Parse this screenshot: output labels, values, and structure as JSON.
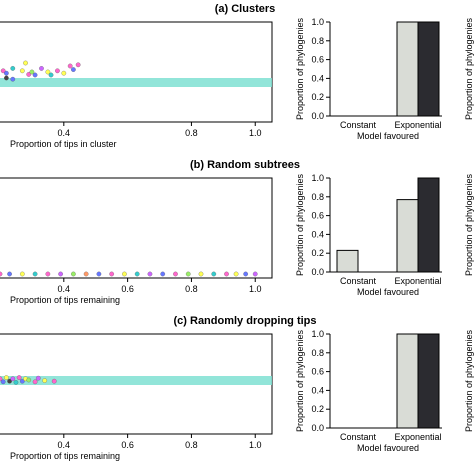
{
  "colors": {
    "band": "#7fe0d2",
    "constant_bar": "#d9dcd6",
    "exponential_bar_light": "#d9dcd6",
    "exponential_bar_dark": "#2b2b30",
    "point_palette": [
      "#ff66cc",
      "#ffff55",
      "#6677ff",
      "#33cccc",
      "#cc66ff",
      "#99ee66",
      "#ff9966",
      "#444444"
    ]
  },
  "chart_data": [
    {
      "type": "scatter",
      "panel": "a",
      "title": "(a) Clusters",
      "xlabel": "Proportion of tips in cluster",
      "xticks": [
        "0.4",
        "0.8",
        "1.0"
      ],
      "xtick_values": [
        0.4,
        0.8,
        1.0
      ],
      "band": true,
      "points": [
        {
          "x": 0.21,
          "y": 0.62,
          "color": "#ff66cc"
        },
        {
          "x": 0.22,
          "y": 0.58,
          "color": "#6677ff"
        },
        {
          "x": 0.24,
          "y": 0.66,
          "color": "#33cccc"
        },
        {
          "x": 0.27,
          "y": 0.62,
          "color": "#ffff55"
        },
        {
          "x": 0.28,
          "y": 0.75,
          "color": "#ffff55"
        },
        {
          "x": 0.29,
          "y": 0.56,
          "color": "#ff66cc"
        },
        {
          "x": 0.3,
          "y": 0.6,
          "color": "#99ee66"
        },
        {
          "x": 0.31,
          "y": 0.55,
          "color": "#6677ff"
        },
        {
          "x": 0.33,
          "y": 0.66,
          "color": "#cc66ff"
        },
        {
          "x": 0.35,
          "y": 0.6,
          "color": "#ffff55"
        },
        {
          "x": 0.36,
          "y": 0.55,
          "color": "#33cccc"
        },
        {
          "x": 0.38,
          "y": 0.62,
          "color": "#ff66cc"
        },
        {
          "x": 0.4,
          "y": 0.58,
          "color": "#ffff55"
        },
        {
          "x": 0.42,
          "y": 0.7,
          "color": "#ff66cc"
        },
        {
          "x": 0.43,
          "y": 0.64,
          "color": "#6677ff"
        },
        {
          "x": 0.445,
          "y": 0.72,
          "color": "#ff66cc"
        },
        {
          "x": 0.22,
          "y": 0.5,
          "color": "#444444"
        },
        {
          "x": 0.24,
          "y": 0.48,
          "color": "#6677ff"
        }
      ]
    },
    {
      "type": "bar",
      "panel": "a",
      "ylabel": "Proportion of phylogenies",
      "xlabel": "Model favoured",
      "categories": [
        "Constant",
        "Exponential"
      ],
      "yticks": [
        "0.0",
        "0.2",
        "0.4",
        "0.6",
        "0.8",
        "1.0"
      ],
      "ylim": [
        0,
        1
      ],
      "values": [
        [
          0.0,
          0.0
        ],
        [
          1.0,
          1.0
        ]
      ],
      "right_label": "Proportion of phylogenies"
    },
    {
      "type": "scatter",
      "panel": "b",
      "title": "(b) Random subtrees",
      "xlabel": "Proportion of tips remaining",
      "xticks": [
        "0.4",
        "0.6",
        "0.8",
        "1.0"
      ],
      "xtick_values": [
        0.4,
        0.6,
        0.8,
        1.0
      ],
      "band": false,
      "points": [
        {
          "x": 0.2,
          "y": 0.05,
          "color": "#ff66cc"
        },
        {
          "x": 0.23,
          "y": 0.05,
          "color": "#6677ff"
        },
        {
          "x": 0.27,
          "y": 0.05,
          "color": "#ffff55"
        },
        {
          "x": 0.31,
          "y": 0.05,
          "color": "#33cccc"
        },
        {
          "x": 0.35,
          "y": 0.05,
          "color": "#ff66cc"
        },
        {
          "x": 0.39,
          "y": 0.05,
          "color": "#cc66ff"
        },
        {
          "x": 0.43,
          "y": 0.05,
          "color": "#99ee66"
        },
        {
          "x": 0.47,
          "y": 0.05,
          "color": "#ff9966"
        },
        {
          "x": 0.51,
          "y": 0.05,
          "color": "#6677ff"
        },
        {
          "x": 0.55,
          "y": 0.05,
          "color": "#ff66cc"
        },
        {
          "x": 0.59,
          "y": 0.05,
          "color": "#ffff55"
        },
        {
          "x": 0.63,
          "y": 0.05,
          "color": "#33cccc"
        },
        {
          "x": 0.67,
          "y": 0.05,
          "color": "#cc66ff"
        },
        {
          "x": 0.71,
          "y": 0.05,
          "color": "#6677ff"
        },
        {
          "x": 0.75,
          "y": 0.05,
          "color": "#ff66cc"
        },
        {
          "x": 0.79,
          "y": 0.05,
          "color": "#99ee66"
        },
        {
          "x": 0.83,
          "y": 0.05,
          "color": "#ffff55"
        },
        {
          "x": 0.87,
          "y": 0.05,
          "color": "#33cccc"
        },
        {
          "x": 0.91,
          "y": 0.05,
          "color": "#ff66cc"
        },
        {
          "x": 0.94,
          "y": 0.05,
          "color": "#ffff55"
        },
        {
          "x": 0.97,
          "y": 0.05,
          "color": "#6677ff"
        },
        {
          "x": 1.0,
          "y": 0.05,
          "color": "#cc66ff"
        }
      ]
    },
    {
      "type": "bar",
      "panel": "b",
      "ylabel": "Proportion of phylogenies",
      "xlabel": "Model favoured",
      "categories": [
        "Constant",
        "Exponential"
      ],
      "yticks": [
        "0.0",
        "0.2",
        "0.4",
        "0.6",
        "0.8",
        "1.0"
      ],
      "ylim": [
        0,
        1
      ],
      "values": [
        [
          0.23,
          0.0
        ],
        [
          0.77,
          1.0
        ]
      ],
      "right_label": "Proportion of phylogenies"
    },
    {
      "type": "scatter",
      "panel": "c",
      "title": "(c) Randomly dropping tips",
      "xlabel": "Proportion of tips remaining",
      "xticks": [
        "0.4",
        "0.6",
        "0.8",
        "1.0"
      ],
      "xtick_values": [
        0.4,
        0.6,
        0.8,
        1.0
      ],
      "band": true,
      "points": [
        {
          "x": 0.2,
          "y": 0.6,
          "color": "#ff66cc"
        },
        {
          "x": 0.21,
          "y": 0.55,
          "color": "#6677ff"
        },
        {
          "x": 0.22,
          "y": 0.62,
          "color": "#ffff55"
        },
        {
          "x": 0.23,
          "y": 0.56,
          "color": "#444444"
        },
        {
          "x": 0.24,
          "y": 0.6,
          "color": "#cc66ff"
        },
        {
          "x": 0.25,
          "y": 0.54,
          "color": "#33cccc"
        },
        {
          "x": 0.26,
          "y": 0.62,
          "color": "#ff66cc"
        },
        {
          "x": 0.27,
          "y": 0.56,
          "color": "#6677ff"
        },
        {
          "x": 0.28,
          "y": 0.6,
          "color": "#ffff55"
        },
        {
          "x": 0.29,
          "y": 0.58,
          "color": "#99ee66"
        },
        {
          "x": 0.31,
          "y": 0.55,
          "color": "#ff66cc"
        },
        {
          "x": 0.32,
          "y": 0.61,
          "color": "#cc66ff"
        },
        {
          "x": 0.34,
          "y": 0.57,
          "color": "#ffff55"
        },
        {
          "x": 0.37,
          "y": 0.56,
          "color": "#ff66cc"
        }
      ]
    },
    {
      "type": "bar",
      "panel": "c",
      "ylabel": "Proportion of phylogenies",
      "xlabel": "Model favoured",
      "categories": [
        "Constant",
        "Exponential"
      ],
      "yticks": [
        "0.0",
        "0.2",
        "0.4",
        "0.6",
        "0.8",
        "1.0"
      ],
      "ylim": [
        0,
        1
      ],
      "values": [
        [
          0.0,
          0.0
        ],
        [
          1.0,
          1.0
        ]
      ],
      "right_label": "Proportion of phylogenies"
    }
  ]
}
